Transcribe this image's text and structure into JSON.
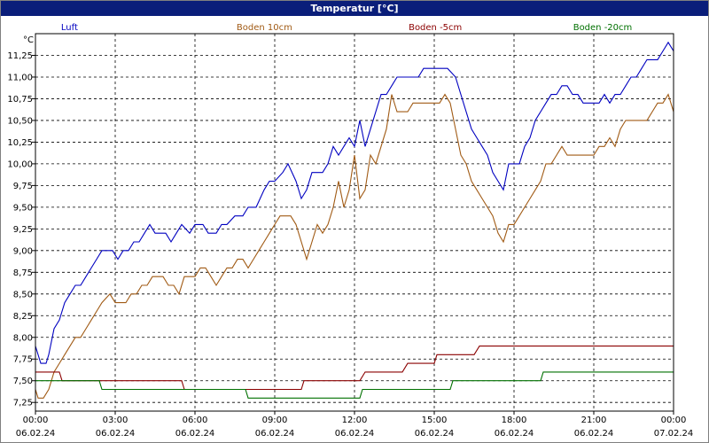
{
  "window": {
    "title": "Temperatur [°C]"
  },
  "chart_data": {
    "type": "line",
    "title": "Temperatur [°C]",
    "ylabel": "°C",
    "xlabel": "",
    "ylim": [
      7.15,
      11.5
    ],
    "xlim": [
      0,
      24
    ],
    "grid": true,
    "legend_placement": "top",
    "y_ticks": [
      "7,25",
      "7,50",
      "7,75",
      "8,00",
      "8,25",
      "8,50",
      "8,75",
      "9,00",
      "9,25",
      "9,50",
      "9,75",
      "10,00",
      "10,25",
      "10,50",
      "10,75",
      "11,00",
      "11,25"
    ],
    "y_tick_values": [
      7.25,
      7.5,
      7.75,
      8.0,
      8.25,
      8.5,
      8.75,
      9.0,
      9.25,
      9.5,
      9.75,
      10.0,
      10.25,
      10.5,
      10.75,
      11.0,
      11.25
    ],
    "x_ticks": [
      {
        "time": "00:00",
        "date": "06.02.24"
      },
      {
        "time": "03:00",
        "date": "06.02.24"
      },
      {
        "time": "06:00",
        "date": "06.02.24"
      },
      {
        "time": "09:00",
        "date": "06.02.24"
      },
      {
        "time": "12:00",
        "date": "06.02.24"
      },
      {
        "time": "15:00",
        "date": "06.02.24"
      },
      {
        "time": "18:00",
        "date": "06.02.24"
      },
      {
        "time": "21:00",
        "date": "06.02.24"
      },
      {
        "time": "00:00",
        "date": "07.02.24"
      }
    ],
    "x_tick_hours": [
      0,
      3,
      6,
      9,
      12,
      15,
      18,
      21,
      24
    ],
    "series": [
      {
        "name": "Luft",
        "color": "#0000c0",
        "x": [
          0,
          0.2,
          0.4,
          0.5,
          0.7,
          0.9,
          1.1,
          1.3,
          1.5,
          1.7,
          1.9,
          2.1,
          2.3,
          2.5,
          2.8,
          2.9,
          3.1,
          3.3,
          3.5,
          3.7,
          3.9,
          4.1,
          4.3,
          4.5,
          4.7,
          4.9,
          5.1,
          5.3,
          5.5,
          5.8,
          6.0,
          6.3,
          6.5,
          6.8,
          7.0,
          7.2,
          7.5,
          7.8,
          8.0,
          8.3,
          8.6,
          8.8,
          9.0,
          9.3,
          9.5,
          9.8,
          10.0,
          10.2,
          10.4,
          10.6,
          10.8,
          11.0,
          11.2,
          11.4,
          11.6,
          11.8,
          12.0,
          12.2,
          12.4,
          12.5,
          12.6,
          12.8,
          13.0,
          13.2,
          13.4,
          13.6,
          13.8,
          14.0,
          14.2,
          14.4,
          14.6,
          14.8,
          15.0,
          15.3,
          15.5,
          15.8,
          16.0,
          16.2,
          16.4,
          16.6,
          16.8,
          17.0,
          17.2,
          17.4,
          17.6,
          17.8,
          18.0,
          18.2,
          18.4,
          18.6,
          18.8,
          19.0,
          19.2,
          19.4,
          19.6,
          19.8,
          20.0,
          20.2,
          20.4,
          20.6,
          20.8,
          21.0,
          21.2,
          21.4,
          21.6,
          21.8,
          22.0,
          22.2,
          22.4,
          22.6,
          22.8,
          23.0,
          23.2,
          23.4,
          23.6,
          23.8,
          24.0
        ],
        "y": [
          7.9,
          7.7,
          7.7,
          7.8,
          8.1,
          8.2,
          8.4,
          8.5,
          8.6,
          8.6,
          8.7,
          8.8,
          8.9,
          9.0,
          9.0,
          9.0,
          8.9,
          9.0,
          9.0,
          9.1,
          9.1,
          9.2,
          9.3,
          9.2,
          9.2,
          9.2,
          9.1,
          9.2,
          9.3,
          9.2,
          9.3,
          9.3,
          9.2,
          9.2,
          9.3,
          9.3,
          9.4,
          9.4,
          9.5,
          9.5,
          9.7,
          9.8,
          9.8,
          9.9,
          10.0,
          9.8,
          9.6,
          9.7,
          9.9,
          9.9,
          9.9,
          10.0,
          10.2,
          10.1,
          10.2,
          10.3,
          10.2,
          10.5,
          10.2,
          10.3,
          10.4,
          10.6,
          10.8,
          10.8,
          10.9,
          11.0,
          11.0,
          11.0,
          11.0,
          11.0,
          11.1,
          11.1,
          11.1,
          11.1,
          11.1,
          11.0,
          10.8,
          10.6,
          10.4,
          10.3,
          10.2,
          10.1,
          9.9,
          9.8,
          9.7,
          10.0,
          10.0,
          10.0,
          10.2,
          10.3,
          10.5,
          10.6,
          10.7,
          10.8,
          10.8,
          10.9,
          10.9,
          10.8,
          10.8,
          10.7,
          10.7,
          10.7,
          10.7,
          10.8,
          10.7,
          10.8,
          10.8,
          10.9,
          11.0,
          11.0,
          11.1,
          11.2,
          11.2,
          11.2,
          11.3,
          11.4,
          11.3
        ],
        "legend_x": 0.098
      },
      {
        "name": "Boden 10cm",
        "color": "#a05a14",
        "x": [
          0,
          0.1,
          0.3,
          0.5,
          0.7,
          0.9,
          1.1,
          1.3,
          1.5,
          1.7,
          1.9,
          2.1,
          2.3,
          2.5,
          2.8,
          3.0,
          3.2,
          3.4,
          3.6,
          3.8,
          4.0,
          4.2,
          4.4,
          4.6,
          4.8,
          5.0,
          5.2,
          5.4,
          5.6,
          5.8,
          6.0,
          6.2,
          6.4,
          6.6,
          6.8,
          7.0,
          7.2,
          7.4,
          7.6,
          7.8,
          8.0,
          8.2,
          8.4,
          8.6,
          8.8,
          9.0,
          9.2,
          9.4,
          9.6,
          9.8,
          10.0,
          10.2,
          10.4,
          10.6,
          10.8,
          11.0,
          11.2,
          11.4,
          11.6,
          11.8,
          12.0,
          12.2,
          12.4,
          12.6,
          12.8,
          13.0,
          13.2,
          13.4,
          13.6,
          13.8,
          14.0,
          14.2,
          14.4,
          14.6,
          14.8,
          15.0,
          15.2,
          15.4,
          15.6,
          15.8,
          16.0,
          16.2,
          16.4,
          16.6,
          16.8,
          17.0,
          17.2,
          17.4,
          17.6,
          17.8,
          18.0,
          18.2,
          18.4,
          18.6,
          18.8,
          19.0,
          19.2,
          19.4,
          19.6,
          19.8,
          20.0,
          20.2,
          20.4,
          20.6,
          20.8,
          21.0,
          21.2,
          21.4,
          21.6,
          21.8,
          22.0,
          22.2,
          22.4,
          22.6,
          22.8,
          23.0,
          23.2,
          23.4,
          23.6,
          23.8,
          24.0
        ],
        "y": [
          7.4,
          7.3,
          7.3,
          7.4,
          7.6,
          7.7,
          7.8,
          7.9,
          8.0,
          8.0,
          8.1,
          8.2,
          8.3,
          8.4,
          8.5,
          8.4,
          8.4,
          8.4,
          8.5,
          8.5,
          8.6,
          8.6,
          8.7,
          8.7,
          8.7,
          8.6,
          8.6,
          8.5,
          8.7,
          8.7,
          8.7,
          8.8,
          8.8,
          8.7,
          8.6,
          8.7,
          8.8,
          8.8,
          8.9,
          8.9,
          8.8,
          8.9,
          9.0,
          9.1,
          9.2,
          9.3,
          9.4,
          9.4,
          9.4,
          9.3,
          9.1,
          8.9,
          9.1,
          9.3,
          9.2,
          9.3,
          9.5,
          9.8,
          9.5,
          9.7,
          10.1,
          9.6,
          9.7,
          10.1,
          10.0,
          10.2,
          10.4,
          10.8,
          10.6,
          10.6,
          10.6,
          10.7,
          10.7,
          10.7,
          10.7,
          10.7,
          10.7,
          10.8,
          10.7,
          10.4,
          10.1,
          10.0,
          9.8,
          9.7,
          9.6,
          9.5,
          9.4,
          9.2,
          9.1,
          9.3,
          9.3,
          9.4,
          9.5,
          9.6,
          9.7,
          9.8,
          10.0,
          10.0,
          10.1,
          10.2,
          10.1,
          10.1,
          10.1,
          10.1,
          10.1,
          10.1,
          10.2,
          10.2,
          10.3,
          10.2,
          10.4,
          10.5,
          10.5,
          10.5,
          10.5,
          10.5,
          10.6,
          10.7,
          10.7,
          10.8,
          10.6
        ],
        "legend_x": 0.373
      },
      {
        "name": "Boden -5cm",
        "color": "#8b0000",
        "x": [
          0,
          0.9,
          1.0,
          5.5,
          5.6,
          10.0,
          10.1,
          12.2,
          12.4,
          13.8,
          14.0,
          15.0,
          15.1,
          16.5,
          16.7,
          24.0
        ],
        "y": [
          7.6,
          7.6,
          7.5,
          7.5,
          7.4,
          7.4,
          7.5,
          7.5,
          7.6,
          7.6,
          7.7,
          7.7,
          7.8,
          7.8,
          7.9,
          7.9
        ],
        "legend_x": 0.614
      },
      {
        "name": "Boden -20cm",
        "color": "#007000",
        "x": [
          0,
          2.4,
          2.5,
          7.9,
          8.0,
          12.2,
          12.3,
          15.6,
          15.7,
          19.0,
          19.1,
          24.0
        ],
        "y": [
          7.5,
          7.5,
          7.4,
          7.4,
          7.3,
          7.3,
          7.4,
          7.4,
          7.5,
          7.5,
          7.6,
          7.6
        ],
        "legend_x": 0.85
      }
    ]
  }
}
